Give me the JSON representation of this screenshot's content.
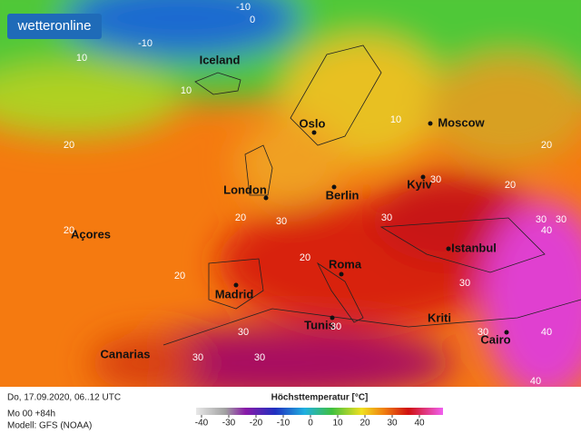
{
  "header": {
    "logo": "wetteronline"
  },
  "cities": [
    "Iceland",
    "Oslo",
    "Moscow",
    "London",
    "Berlin",
    "Kyiv",
    "Açores",
    "Istanbul",
    "Madrid",
    "Roma",
    "Kriti",
    "Tunis",
    "Canarias",
    "Cairo"
  ],
  "contour_labels": [
    -10,
    0,
    -10,
    10,
    10,
    10,
    20,
    20,
    30,
    30,
    20,
    20,
    30,
    30,
    30,
    30,
    30,
    30,
    40,
    40,
    40,
    30,
    20,
    20,
    30,
    20,
    30
  ],
  "footer": {
    "date": "Do, 17.09.2020, 06..12 UTC",
    "run": "Mo 00 +84h",
    "model": "Modell: GFS (NOAA)"
  },
  "legend": {
    "title": "Höchsttemperatur [°C]",
    "ticks": [
      -40,
      -30,
      -20,
      -10,
      0,
      10,
      20,
      30,
      40
    ]
  }
}
